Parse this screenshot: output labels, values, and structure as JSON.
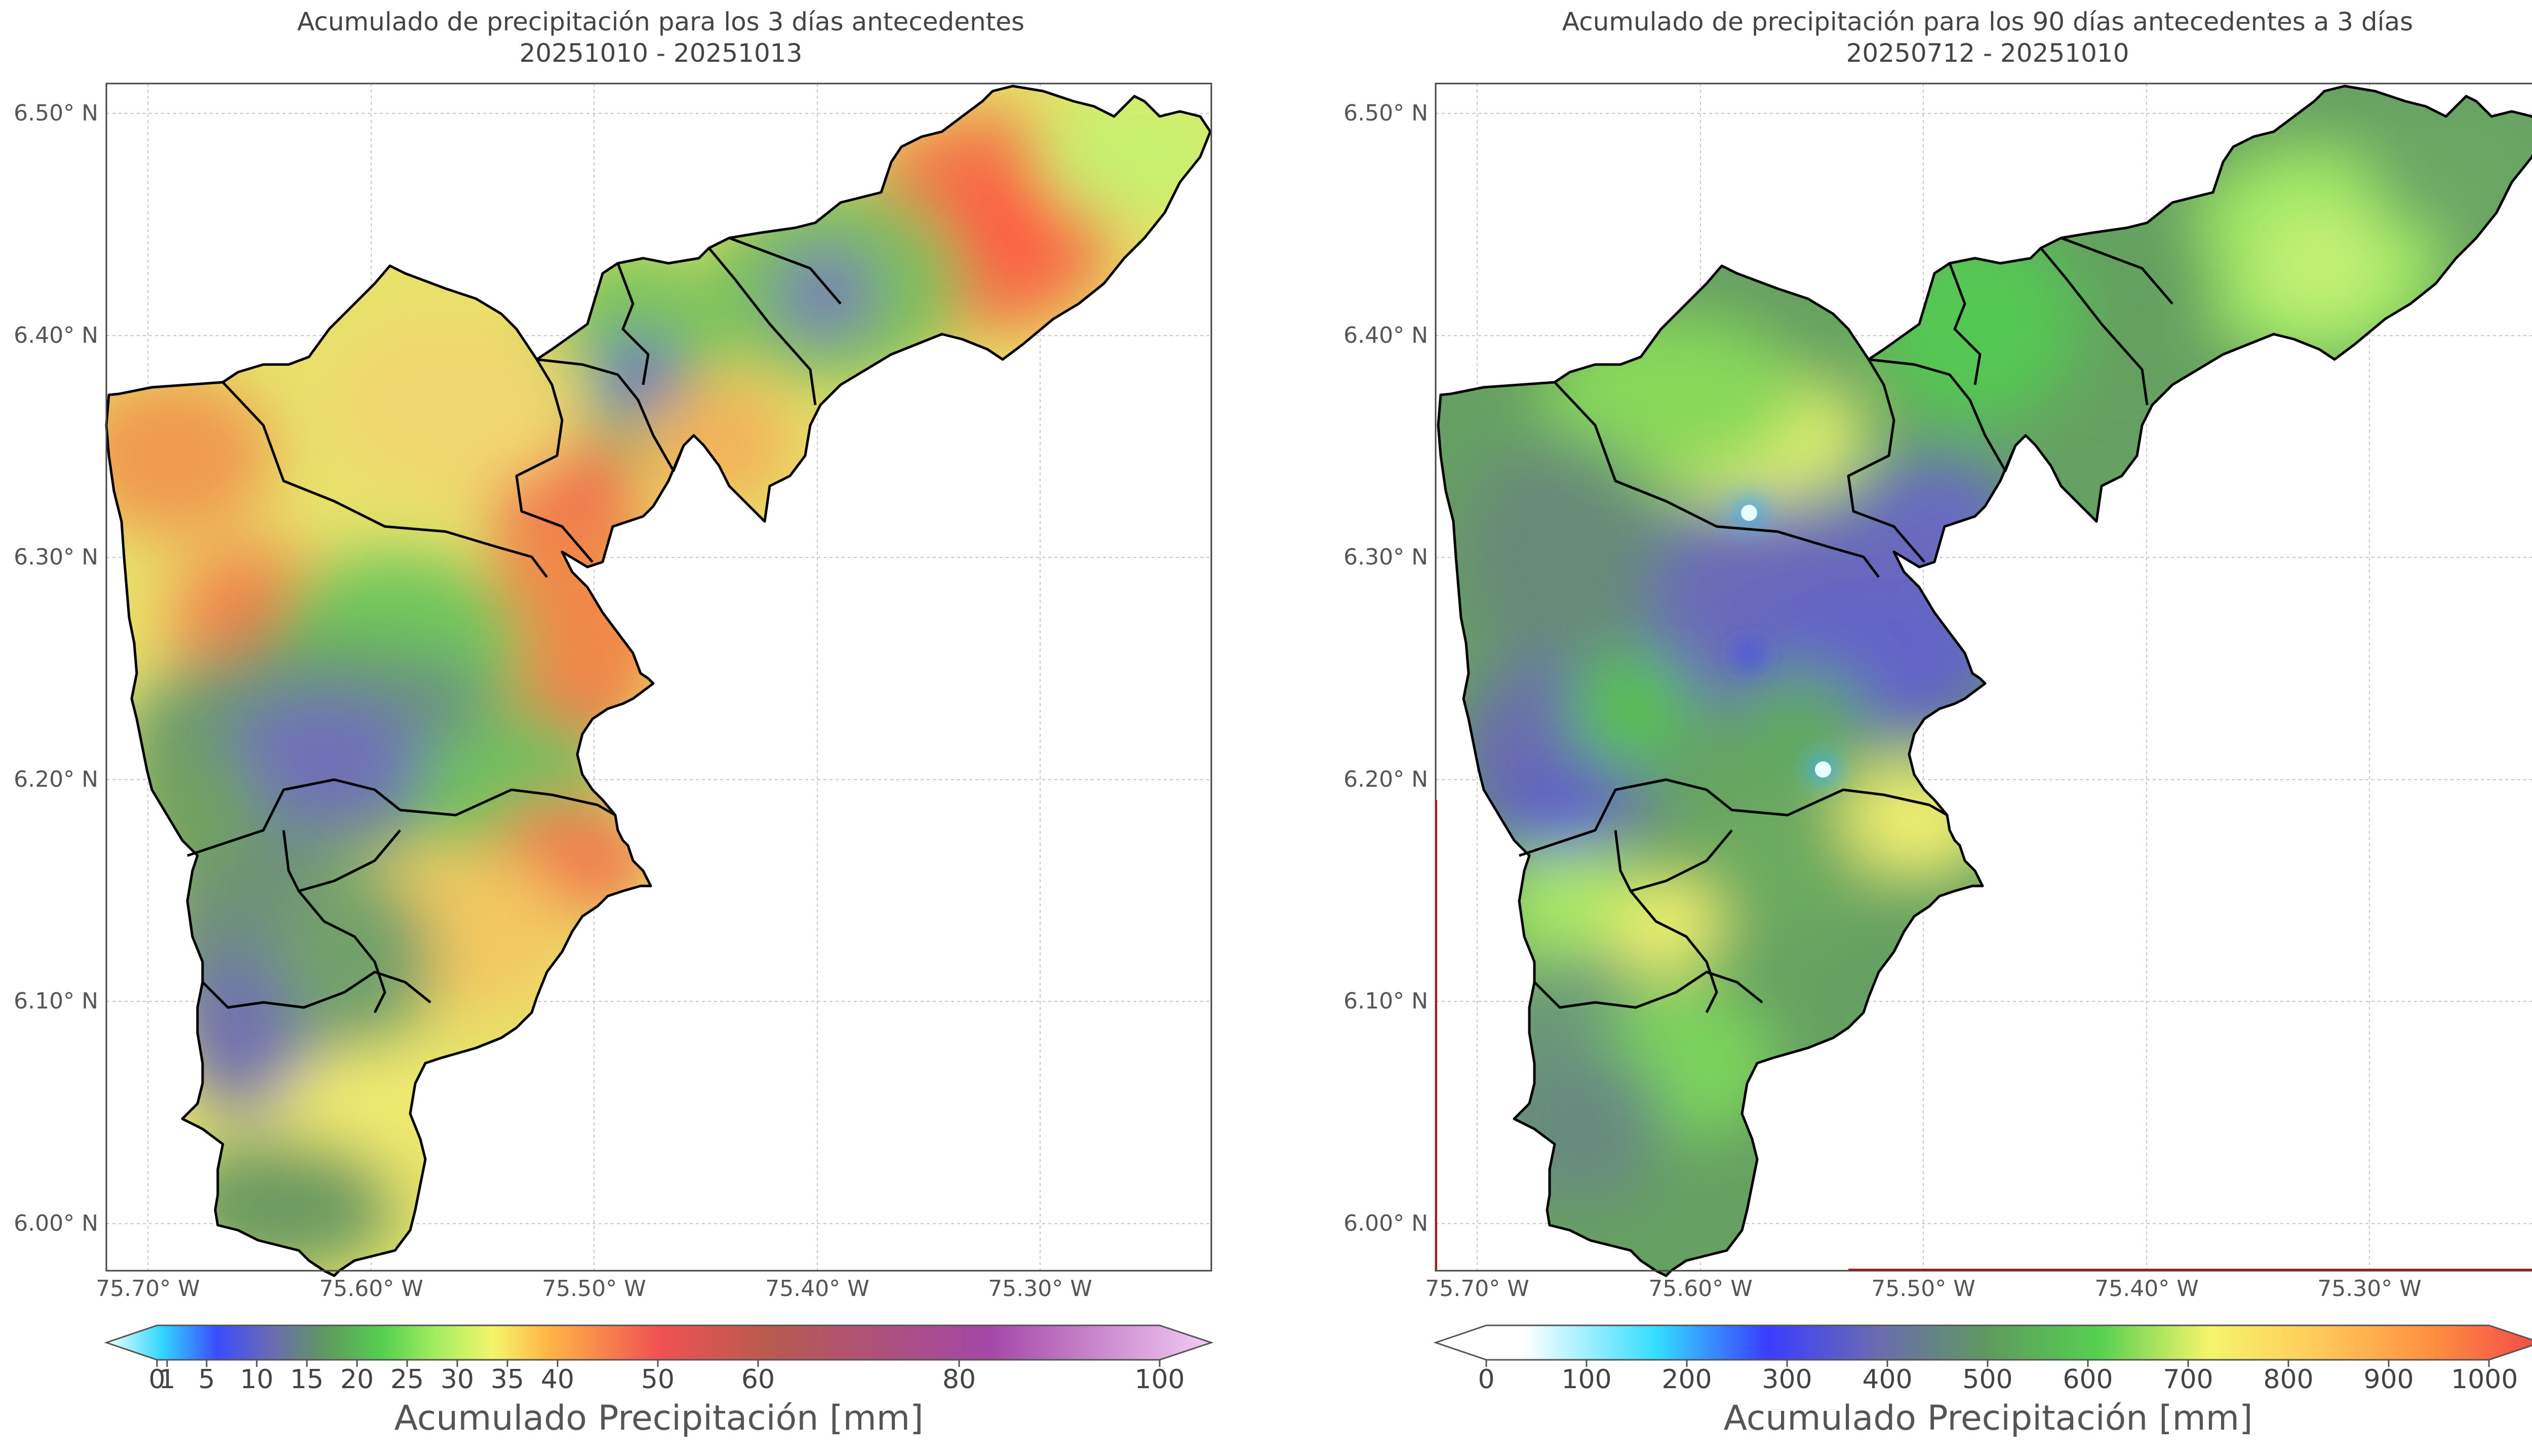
{
  "panels": [
    {
      "id": "left",
      "title_line1": "Acumulado de precipitación para los 3 días antecedentes",
      "title_line2": "20251010 - 20251013",
      "colorbar": {
        "label": "Acumulado Precipitación [mm]",
        "ticks": [
          "0",
          "1",
          "5",
          "10",
          "15",
          "20",
          "25",
          "30",
          "35",
          "40",
          "50",
          "60",
          "80",
          "100"
        ],
        "extend": "both"
      }
    },
    {
      "id": "right",
      "title_line1": "Acumulado de precipitación para los 90 días antecedentes a 3 días",
      "title_line2": "20250712 - 20251010",
      "colorbar": {
        "label": "Acumulado Precipitación [mm]",
        "ticks": [
          "0",
          "100",
          "200",
          "300",
          "400",
          "500",
          "600",
          "700",
          "800",
          "900",
          "1000"
        ],
        "extend": "both"
      }
    }
  ],
  "axes": {
    "lat_ticks": [
      "6.50° N",
      "6.40° N",
      "6.30° N",
      "6.20° N",
      "6.10° N",
      "6.00° N"
    ],
    "lon_ticks": [
      "75.70° W",
      "75.60° W",
      "75.50° W",
      "75.40° W",
      "75.30° W"
    ]
  },
  "colors": {
    "frame": "#444444",
    "grid": "#bbbbbb",
    "boundary": "#000000"
  }
}
